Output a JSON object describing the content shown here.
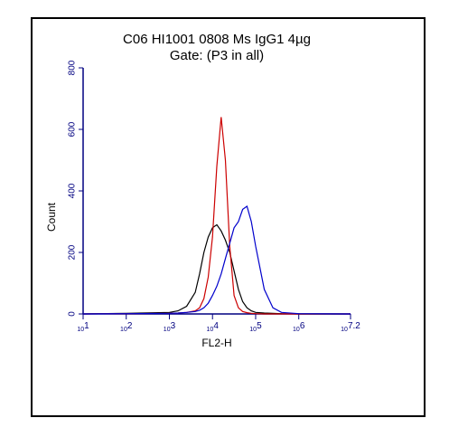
{
  "chart_data": {
    "type": "line",
    "title": "C06 HI1001 0808 Ms IgG1 4µg",
    "subtitle": "Gate: (P3 in all)",
    "x_label": "FL2-H",
    "y_label": "Count",
    "xscale": "log",
    "xlim": [
      10,
      15848932
    ],
    "xticks": [
      {
        "value": 10,
        "label": "10",
        "power": "1"
      },
      {
        "value": 100,
        "label": "10",
        "power": "2"
      },
      {
        "value": 1000,
        "label": "10",
        "power": "3"
      },
      {
        "value": 10000,
        "label": "10",
        "power": "4"
      },
      {
        "value": 100000,
        "label": "10",
        "power": "5"
      },
      {
        "value": 1000000,
        "label": "10",
        "power": "6"
      },
      {
        "value": 15848932,
        "label": "10",
        "power": "7.2"
      }
    ],
    "ylim": [
      0,
      800
    ],
    "yticks": [
      0,
      200,
      400,
      600,
      800
    ],
    "axis_color": "#000080",
    "x": [
      10,
      100,
      1000,
      1585,
      2512,
      3981,
      5012,
      6310,
      7943,
      10000,
      12589,
      15849,
      19953,
      25119,
      31623,
      39811,
      50119,
      63096,
      79433,
      100000,
      158489,
      251189,
      398107,
      1000000,
      15848932
    ],
    "series": [
      {
        "name": "black",
        "color": "#000000",
        "values": [
          0,
          2,
          5,
          10,
          25,
          70,
          130,
          200,
          250,
          280,
          290,
          270,
          240,
          200,
          140,
          80,
          40,
          20,
          10,
          5,
          3,
          2,
          1,
          0,
          0
        ]
      },
      {
        "name": "red",
        "color": "#cc0000",
        "values": [
          0,
          1,
          2,
          3,
          5,
          10,
          20,
          50,
          120,
          250,
          480,
          640,
          500,
          220,
          60,
          20,
          8,
          4,
          2,
          1,
          0,
          0,
          0,
          0,
          0
        ]
      },
      {
        "name": "blue",
        "color": "#0000cc",
        "values": [
          0,
          1,
          2,
          3,
          5,
          8,
          12,
          20,
          35,
          60,
          90,
          130,
          180,
          230,
          280,
          300,
          340,
          350,
          300,
          220,
          80,
          20,
          5,
          1,
          0
        ]
      }
    ]
  }
}
